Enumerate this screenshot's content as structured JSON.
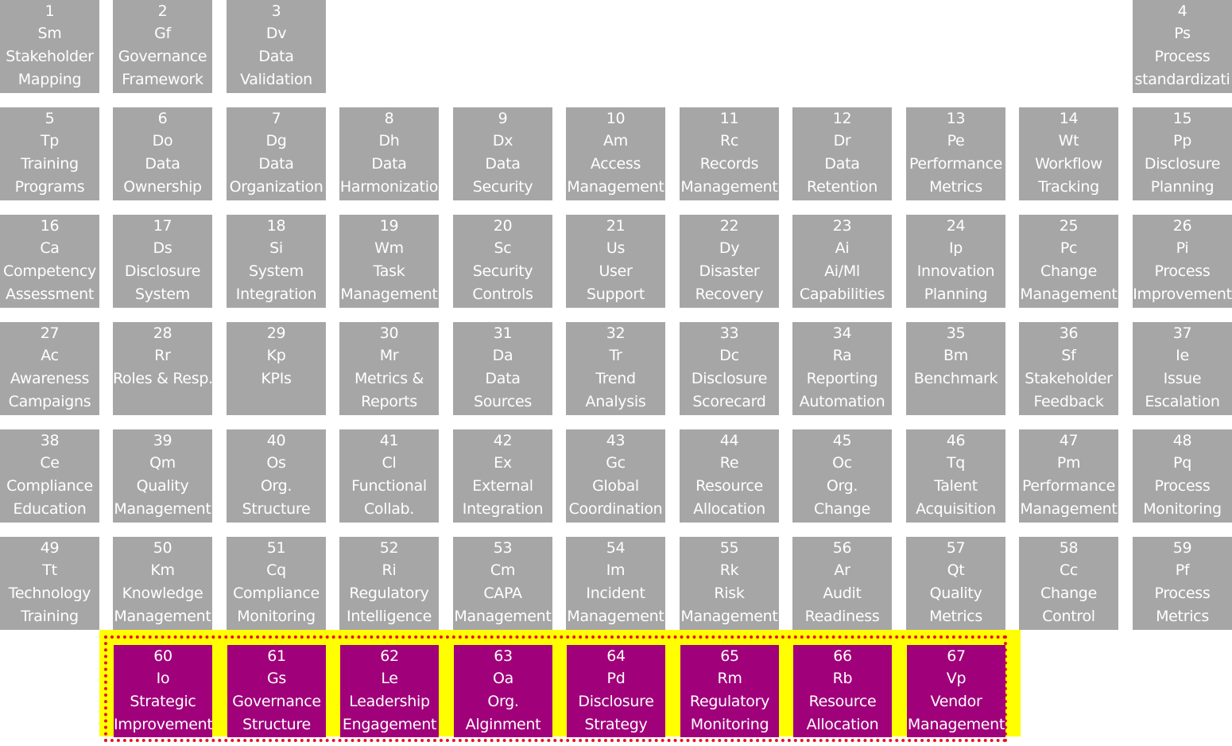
{
  "highlight": {
    "band_color": "#ffff00",
    "border_color": "#e8141e",
    "tile_color": "#a0007a"
  },
  "base_tile_color": "#a6a6a6",
  "tiles": [
    {
      "n": "1",
      "sym": "Sm",
      "l1": "Stakeholder",
      "l2": "Mapping",
      "col": 0,
      "row": 0
    },
    {
      "n": "2",
      "sym": "Gf",
      "l1": "Governance",
      "l2": "Framework",
      "col": 1,
      "row": 0
    },
    {
      "n": "3",
      "sym": "Dv",
      "l1": "Data",
      "l2": "Validation",
      "col": 2,
      "row": 0
    },
    {
      "n": "4",
      "sym": "Ps",
      "l1": "Process",
      "l2": "standardizati",
      "col": 10,
      "row": 0
    },
    {
      "n": "5",
      "sym": "Tp",
      "l1": "Training",
      "l2": "Programs",
      "col": 0,
      "row": 1
    },
    {
      "n": "6",
      "sym": "Do",
      "l1": "Data",
      "l2": "Ownership",
      "col": 1,
      "row": 1
    },
    {
      "n": "7",
      "sym": "Dg",
      "l1": "Data",
      "l2": "Organization",
      "col": 2,
      "row": 1
    },
    {
      "n": "8",
      "sym": "Dh",
      "l1": "Data",
      "l2": "Harmonizatio",
      "col": 3,
      "row": 1
    },
    {
      "n": "9",
      "sym": "Dx",
      "l1": "Data",
      "l2": "Security",
      "col": 4,
      "row": 1
    },
    {
      "n": "10",
      "sym": "Am",
      "l1": "Access",
      "l2": "Management",
      "col": 5,
      "row": 1
    },
    {
      "n": "11",
      "sym": "Rc",
      "l1": "Records",
      "l2": "Management",
      "col": 6,
      "row": 1
    },
    {
      "n": "12",
      "sym": "Dr",
      "l1": "Data",
      "l2": "Retention",
      "col": 7,
      "row": 1
    },
    {
      "n": "13",
      "sym": "Pe",
      "l1": "Performance",
      "l2": "Metrics",
      "col": 8,
      "row": 1
    },
    {
      "n": "14",
      "sym": "Wt",
      "l1": "Workflow",
      "l2": "Tracking",
      "col": 9,
      "row": 1
    },
    {
      "n": "15",
      "sym": "Pp",
      "l1": "Disclosure",
      "l2": "Planning",
      "col": 10,
      "row": 1
    },
    {
      "n": "16",
      "sym": "Ca",
      "l1": "Competency",
      "l2": "Assessment",
      "col": 0,
      "row": 2
    },
    {
      "n": "17",
      "sym": "Ds",
      "l1": "Disclosure",
      "l2": "System",
      "col": 1,
      "row": 2
    },
    {
      "n": "18",
      "sym": "Si",
      "l1": "System",
      "l2": "Integration",
      "col": 2,
      "row": 2
    },
    {
      "n": "19",
      "sym": "Wm",
      "l1": "Task",
      "l2": "Management",
      "col": 3,
      "row": 2
    },
    {
      "n": "20",
      "sym": "Sc",
      "l1": "Security",
      "l2": "Controls",
      "col": 4,
      "row": 2
    },
    {
      "n": "21",
      "sym": "Us",
      "l1": "User",
      "l2": "Support",
      "col": 5,
      "row": 2
    },
    {
      "n": "22",
      "sym": "Dy",
      "l1": "Disaster",
      "l2": "Recovery",
      "col": 6,
      "row": 2
    },
    {
      "n": "23",
      "sym": "Ai",
      "l1": "Ai/Ml",
      "l2": "Capabilities",
      "col": 7,
      "row": 2
    },
    {
      "n": "24",
      "sym": "Ip",
      "l1": "Innovation",
      "l2": "Planning",
      "col": 8,
      "row": 2
    },
    {
      "n": "25",
      "sym": "Pc",
      "l1": "Change",
      "l2": "Management",
      "col": 9,
      "row": 2
    },
    {
      "n": "26",
      "sym": "Pi",
      "l1": "Process",
      "l2": "Improvement",
      "col": 10,
      "row": 2
    },
    {
      "n": "27",
      "sym": "Ac",
      "l1": "Awareness",
      "l2": "Campaigns",
      "col": 0,
      "row": 3
    },
    {
      "n": "28",
      "sym": "Rr",
      "l1": "Roles & Resp.",
      "l2": "",
      "col": 1,
      "row": 3
    },
    {
      "n": "29",
      "sym": "Kp",
      "l1": "KPIs",
      "l2": "",
      "col": 2,
      "row": 3
    },
    {
      "n": "30",
      "sym": "Mr",
      "l1": "Metrics &",
      "l2": "Reports",
      "col": 3,
      "row": 3
    },
    {
      "n": "31",
      "sym": "Da",
      "l1": "Data",
      "l2": "Sources",
      "col": 4,
      "row": 3
    },
    {
      "n": "32",
      "sym": "Tr",
      "l1": "Trend",
      "l2": "Analysis",
      "col": 5,
      "row": 3
    },
    {
      "n": "33",
      "sym": "Dc",
      "l1": "Disclosure",
      "l2": "Scorecard",
      "col": 6,
      "row": 3
    },
    {
      "n": "34",
      "sym": "Ra",
      "l1": "Reporting",
      "l2": "Automation",
      "col": 7,
      "row": 3
    },
    {
      "n": "35",
      "sym": "Bm",
      "l1": "Benchmark",
      "l2": "",
      "col": 8,
      "row": 3
    },
    {
      "n": "36",
      "sym": "Sf",
      "l1": "Stakeholder",
      "l2": "Feedback",
      "col": 9,
      "row": 3
    },
    {
      "n": "37",
      "sym": "Ie",
      "l1": "Issue",
      "l2": "Escalation",
      "col": 10,
      "row": 3
    },
    {
      "n": "38",
      "sym": "Ce",
      "l1": "Compliance",
      "l2": "Education",
      "col": 0,
      "row": 4
    },
    {
      "n": "39",
      "sym": "Qm",
      "l1": "Quality",
      "l2": "Management",
      "col": 1,
      "row": 4
    },
    {
      "n": "40",
      "sym": "Os",
      "l1": "Org.",
      "l2": "Structure",
      "col": 2,
      "row": 4
    },
    {
      "n": "41",
      "sym": "Cl",
      "l1": "Functional",
      "l2": "Collab.",
      "col": 3,
      "row": 4
    },
    {
      "n": "42",
      "sym": "Ex",
      "l1": "External",
      "l2": "Integration",
      "col": 4,
      "row": 4
    },
    {
      "n": "43",
      "sym": "Gc",
      "l1": "Global",
      "l2": "Coordination",
      "col": 5,
      "row": 4
    },
    {
      "n": "44",
      "sym": "Re",
      "l1": "Resource",
      "l2": "Allocation",
      "col": 6,
      "row": 4
    },
    {
      "n": "45",
      "sym": "Oc",
      "l1": "Org.",
      "l2": "Change",
      "col": 7,
      "row": 4
    },
    {
      "n": "46",
      "sym": "Tq",
      "l1": "Talent",
      "l2": "Acquisition",
      "col": 8,
      "row": 4
    },
    {
      "n": "47",
      "sym": "Pm",
      "l1": "Performance",
      "l2": "Management",
      "col": 9,
      "row": 4
    },
    {
      "n": "48",
      "sym": "Pq",
      "l1": "Process",
      "l2": "Monitoring",
      "col": 10,
      "row": 4
    },
    {
      "n": "49",
      "sym": "Tt",
      "l1": "Technology",
      "l2": "Training",
      "col": 0,
      "row": 5
    },
    {
      "n": "50",
      "sym": "Km",
      "l1": "Knowledge",
      "l2": "Management",
      "col": 1,
      "row": 5
    },
    {
      "n": "51",
      "sym": "Cq",
      "l1": "Compliance",
      "l2": "Monitoring",
      "col": 2,
      "row": 5
    },
    {
      "n": "52",
      "sym": "Ri",
      "l1": "Regulatory",
      "l2": "Intelligence",
      "col": 3,
      "row": 5
    },
    {
      "n": "53",
      "sym": "Cm",
      "l1": "CAPA",
      "l2": "Management",
      "col": 4,
      "row": 5
    },
    {
      "n": "54",
      "sym": "Im",
      "l1": "Incident",
      "l2": "Management",
      "col": 5,
      "row": 5
    },
    {
      "n": "55",
      "sym": "Rk",
      "l1": "Risk",
      "l2": "Management",
      "col": 6,
      "row": 5
    },
    {
      "n": "56",
      "sym": "Ar",
      "l1": "Audit",
      "l2": "Readiness",
      "col": 7,
      "row": 5
    },
    {
      "n": "57",
      "sym": "Qt",
      "l1": "Quality",
      "l2": "Metrics",
      "col": 8,
      "row": 5
    },
    {
      "n": "58",
      "sym": "Cc",
      "l1": "Change",
      "l2": "Control",
      "col": 9,
      "row": 5
    },
    {
      "n": "59",
      "sym": "Pf",
      "l1": "Process",
      "l2": "Metrics",
      "col": 10,
      "row": 5
    },
    {
      "n": "60",
      "sym": "Io",
      "l1": "Strategic",
      "l2": "Improvement",
      "col": 1,
      "row": 6,
      "hl": true
    },
    {
      "n": "61",
      "sym": "Gs",
      "l1": "Governance",
      "l2": "Structure",
      "col": 2,
      "row": 6,
      "hl": true
    },
    {
      "n": "62",
      "sym": "Le",
      "l1": "Leadership",
      "l2": "Engagement",
      "col": 3,
      "row": 6,
      "hl": true
    },
    {
      "n": "63",
      "sym": "Oa",
      "l1": "Org.",
      "l2": "Alginment",
      "col": 4,
      "row": 6,
      "hl": true
    },
    {
      "n": "64",
      "sym": "Pd",
      "l1": "Disclosure",
      "l2": "Strategy",
      "col": 5,
      "row": 6,
      "hl": true
    },
    {
      "n": "65",
      "sym": "Rm",
      "l1": "Regulatory",
      "l2": "Monitoring",
      "col": 6,
      "row": 6,
      "hl": true
    },
    {
      "n": "66",
      "sym": "Rb",
      "l1": "Resource",
      "l2": "Allocation",
      "col": 7,
      "row": 6,
      "hl": true
    },
    {
      "n": "67",
      "sym": "Vp",
      "l1": "Vendor",
      "l2": "Management",
      "col": 8,
      "row": 6,
      "hl": true
    }
  ]
}
